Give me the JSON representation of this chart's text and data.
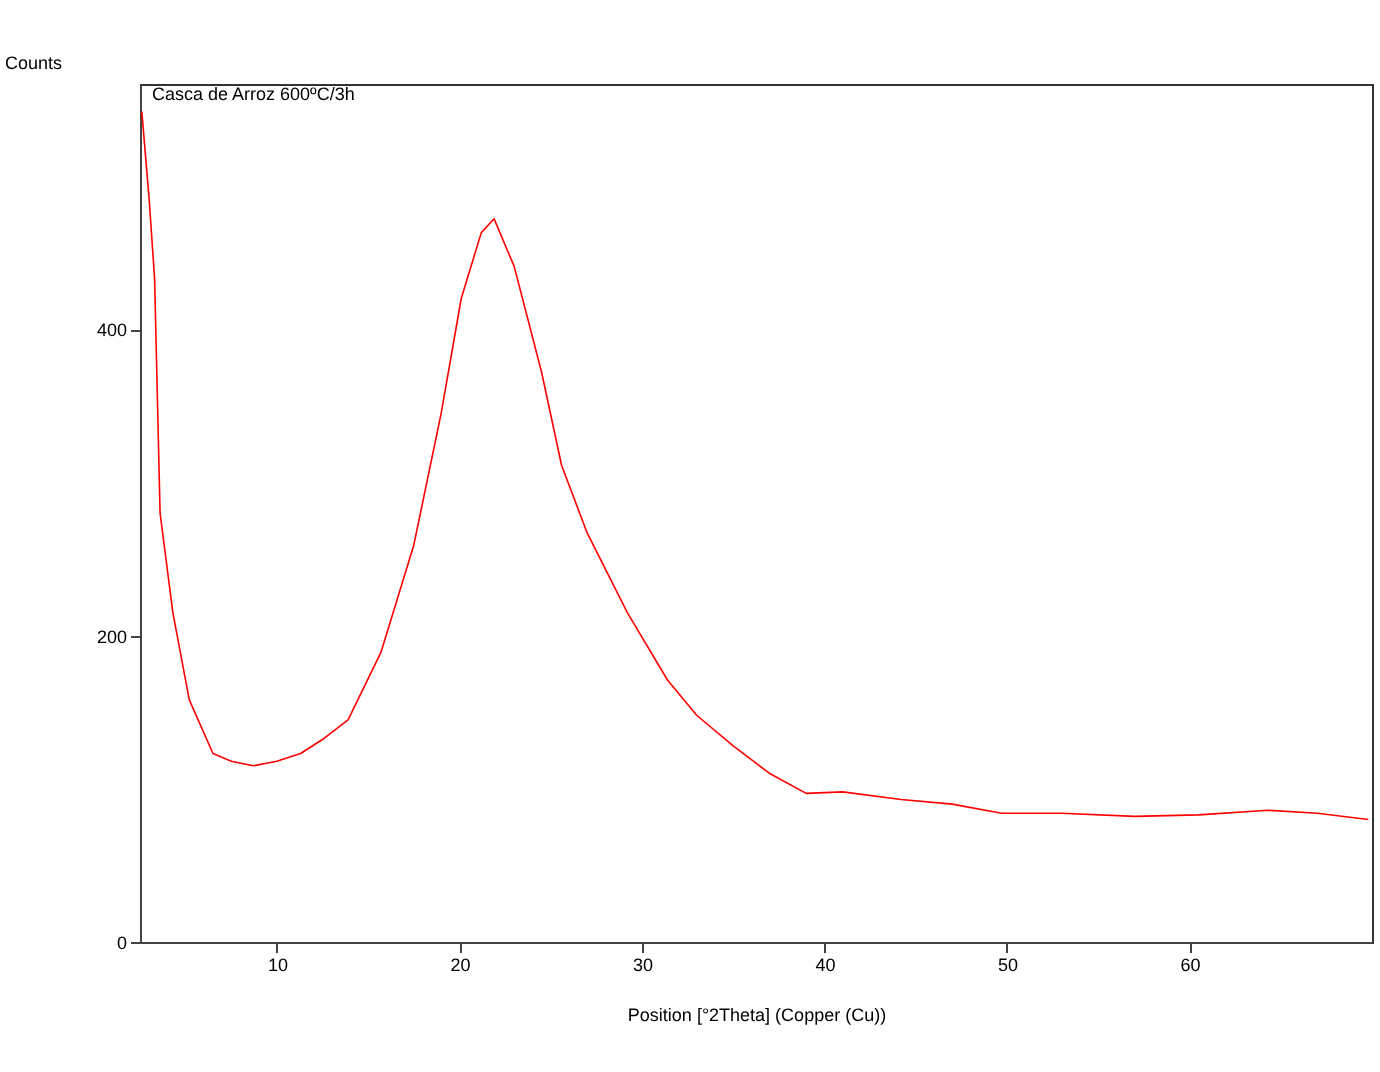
{
  "chart_data": {
    "type": "line",
    "title": "Casca de Arroz 600ºC/3h",
    "xlabel": "Position [°2Theta] (Copper (Cu))",
    "ylabel": "Counts",
    "x": [
      2.6,
      3.0,
      3.3,
      3.6,
      4.3,
      5.2,
      6.5,
      7.5,
      8.7,
      10.0,
      11.3,
      12.6,
      13.9,
      15.7,
      17.5,
      19.0,
      20.1,
      21.2,
      21.9,
      23.0,
      24.5,
      25.6,
      27.0,
      29.2,
      31.4,
      33.0,
      35.0,
      37.0,
      39.0,
      41.0,
      44.2,
      47.0,
      49.7,
      53.0,
      57.0,
      60.5,
      64.3,
      67.0,
      69.8
    ],
    "series": [
      {
        "color": "#ff0000",
        "values": [
          542,
          485,
          433,
          280,
          215,
          158,
          123,
          118,
          115,
          118,
          123,
          133,
          145,
          189,
          259,
          345,
          420,
          463,
          472,
          441,
          372,
          311,
          267,
          215,
          171,
          148,
          128,
          110,
          97,
          98,
          93,
          90,
          84,
          84,
          82,
          83,
          86,
          84,
          80
        ]
      }
    ],
    "xlim": [
      2.5,
      70
    ],
    "ylim": [
      0,
      560
    ],
    "xticks": [
      10,
      20,
      30,
      40,
      50,
      60
    ],
    "yticks": [
      0,
      200,
      400
    ],
    "grid": false,
    "marker": "none",
    "line_style": "solid"
  }
}
